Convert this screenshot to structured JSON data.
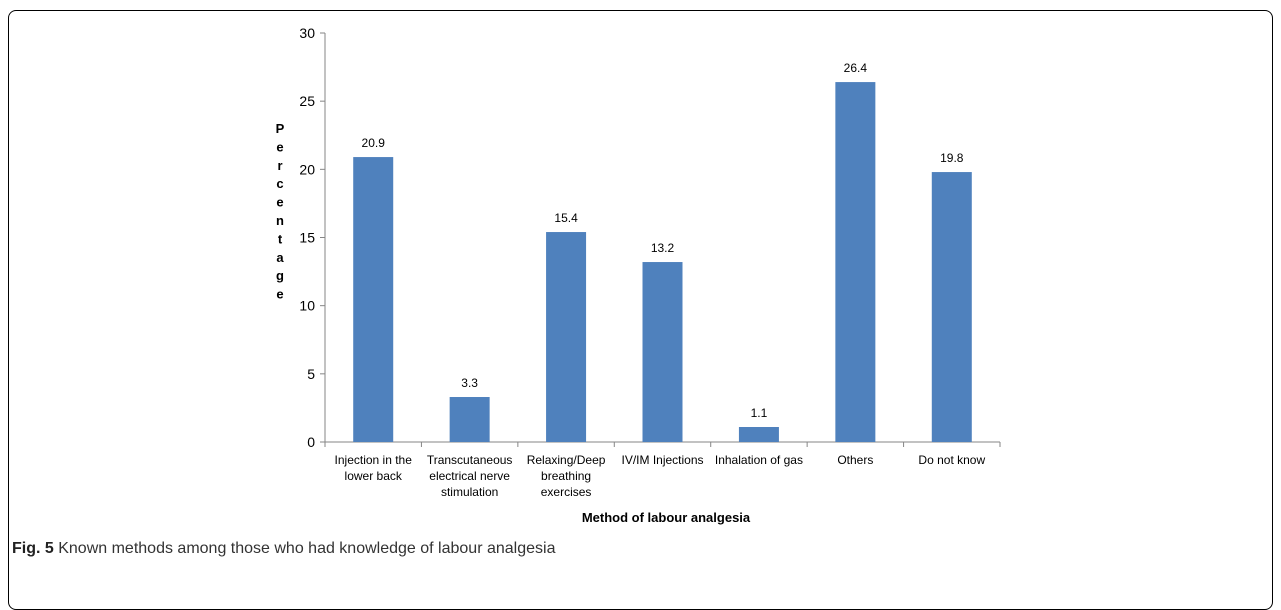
{
  "caption": {
    "label": "Fig. 5",
    "text": "Known methods among those who had knowledge of labour analgesia"
  },
  "chart_data": {
    "type": "bar",
    "categories": [
      [
        "Injection in the",
        "lower back"
      ],
      [
        "Transcutaneous",
        "electrical nerve",
        "stimulation"
      ],
      [
        "Relaxing/Deep",
        "breathing",
        "exercises"
      ],
      [
        "IV/IM Injections"
      ],
      [
        "Inhalation of gas"
      ],
      [
        "Others"
      ],
      [
        "Do not know"
      ]
    ],
    "values": [
      20.9,
      3.3,
      15.4,
      13.2,
      1.1,
      26.4,
      19.8
    ],
    "value_labels": [
      "20.9",
      "3.3",
      "15.4",
      "13.2",
      "1.1",
      "26.4",
      "19.8"
    ],
    "xlabel": "Method of labour analgesia",
    "ylabel": "Percentage",
    "ylim": [
      0,
      30
    ],
    "yticks": [
      "0",
      "5",
      "10",
      "15",
      "20",
      "25",
      "30"
    ],
    "bar_color": "#4f81bd",
    "grid": false,
    "legend": "none"
  }
}
